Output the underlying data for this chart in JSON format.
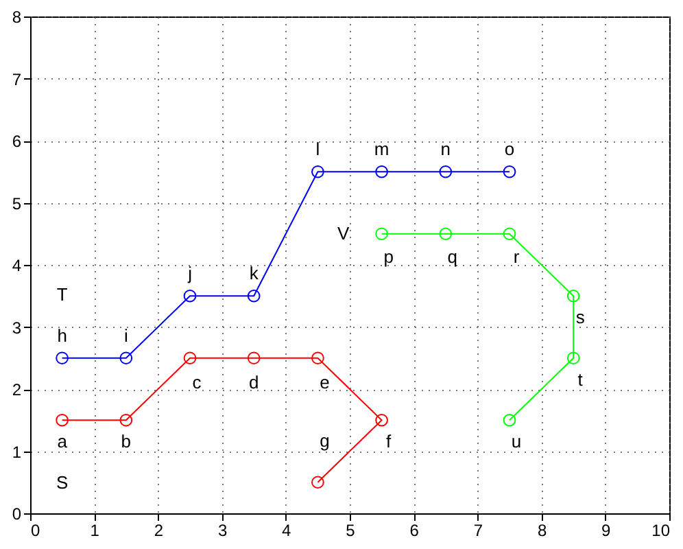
{
  "chart_data": {
    "type": "line",
    "marker": "circle",
    "grid": true,
    "xlim": [
      0,
      10
    ],
    "ylim": [
      0,
      8
    ],
    "xticks": [
      0,
      1,
      2,
      3,
      4,
      5,
      6,
      7,
      8,
      9,
      10
    ],
    "yticks": [
      0,
      1,
      2,
      3,
      4,
      5,
      6,
      7,
      8
    ],
    "series": [
      {
        "name": "T",
        "color": "#0000ff",
        "x": [
          0.5,
          1.5,
          2.5,
          3.5,
          4.5,
          5.5,
          6.5,
          7.5
        ],
        "values": [
          2.5,
          2.5,
          3.5,
          3.5,
          5.5,
          5.5,
          5.5,
          5.5
        ]
      },
      {
        "name": "S",
        "color": "#ff0000",
        "x": [
          0.5,
          1.5,
          2.5,
          3.5,
          4.5,
          5.5,
          4.5
        ],
        "values": [
          1.5,
          1.5,
          2.5,
          2.5,
          2.5,
          1.5,
          0.5
        ]
      },
      {
        "name": "V",
        "color": "#00ff00",
        "x": [
          5.5,
          6.5,
          7.5,
          8.5,
          8.5,
          7.5
        ],
        "values": [
          4.5,
          4.5,
          4.5,
          3.5,
          2.5,
          1.5
        ]
      }
    ],
    "annotations": [
      {
        "text": "h",
        "x": 0.5,
        "y": 2.5
      },
      {
        "text": "i",
        "x": 1.5,
        "y": 2.5
      },
      {
        "text": "j",
        "x": 2.5,
        "y": 3.5
      },
      {
        "text": "k",
        "x": 3.5,
        "y": 3.5
      },
      {
        "text": "l",
        "x": 4.5,
        "y": 5.5
      },
      {
        "text": "m",
        "x": 5.5,
        "y": 5.5
      },
      {
        "text": "n",
        "x": 6.5,
        "y": 5.5
      },
      {
        "text": "o",
        "x": 7.5,
        "y": 5.5
      },
      {
        "text": "a",
        "x": 0.5,
        "y": 1.5
      },
      {
        "text": "b",
        "x": 1.5,
        "y": 1.5
      },
      {
        "text": "c",
        "x": 2.5,
        "y": 2.5
      },
      {
        "text": "d",
        "x": 3.5,
        "y": 2.5
      },
      {
        "text": "e",
        "x": 4.5,
        "y": 2.5
      },
      {
        "text": "f",
        "x": 5.5,
        "y": 1.5
      },
      {
        "text": "g",
        "x": 4.5,
        "y": 0.5
      },
      {
        "text": "p",
        "x": 5.5,
        "y": 4.5
      },
      {
        "text": "q",
        "x": 6.5,
        "y": 4.5
      },
      {
        "text": "r",
        "x": 7.5,
        "y": 4.5
      },
      {
        "text": "s",
        "x": 8.5,
        "y": 3.5
      },
      {
        "text": "t",
        "x": 8.5,
        "y": 2.5
      },
      {
        "text": "u",
        "x": 7.5,
        "y": 1.5
      }
    ]
  }
}
